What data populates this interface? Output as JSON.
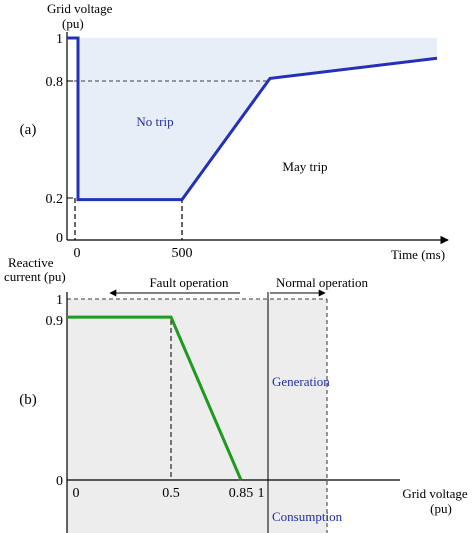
{
  "chart_data": [
    {
      "type": "line",
      "panel_label": "(a)",
      "ylabel": "Grid voltage (pu)",
      "xlabel": "Time (ms)",
      "y_ticks": [
        "1",
        "0.8",
        "0.2",
        "0"
      ],
      "x_ticks": [
        "0",
        "500"
      ],
      "regions": [
        "No trip",
        "May trip"
      ],
      "line_color": "#2430b8",
      "fill_color": "#e8eef7",
      "series": [
        {
          "x": [
            0,
            0,
            0,
            500,
            1000,
            2000
          ],
          "y": [
            1,
            1,
            0.2,
            0.2,
            0.8,
            0.9
          ]
        }
      ]
    },
    {
      "type": "line",
      "panel_label": "(b)",
      "ylabel": "Reactive current (pu)",
      "xlabel": "Grid voltage (pu)",
      "y_ticks": [
        "1",
        "0.9",
        "0"
      ],
      "x_ticks": [
        "0",
        "0.5",
        "0.85",
        "1"
      ],
      "annotations": {
        "fault": "Fault operation",
        "normal": "Normal operation",
        "generation": "Generation",
        "consumption": "Consumption"
      },
      "line_color": "#1e9a1e",
      "fill_color": "#ededed",
      "series": [
        {
          "x": [
            0,
            0.5,
            0.85
          ],
          "y": [
            0.9,
            0.9,
            0
          ]
        }
      ]
    }
  ]
}
